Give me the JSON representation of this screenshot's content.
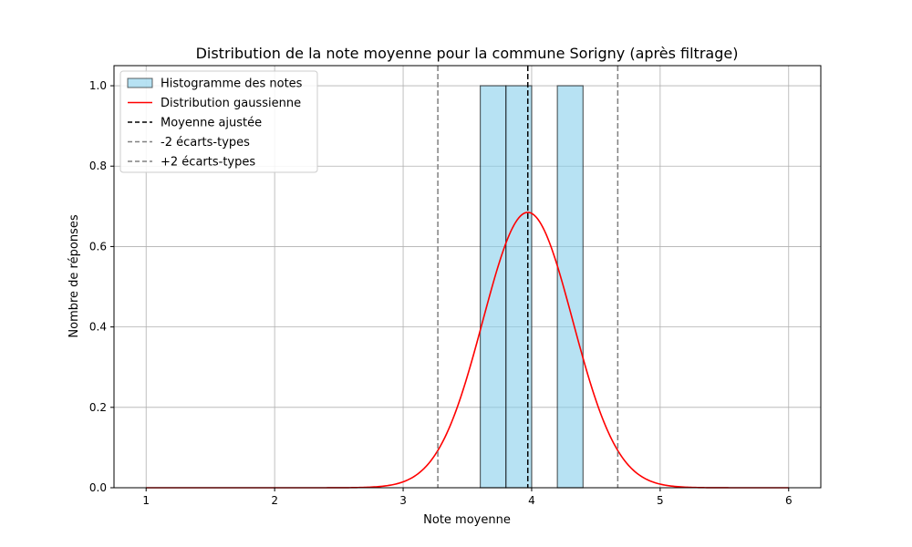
{
  "chart_data": {
    "type": "bar",
    "title": "Distribution de la note moyenne pour la commune Sorigny (après filtrage)",
    "xlabel": "Note moyenne",
    "ylabel": "Nombre de réponses",
    "xlim": [
      0.75,
      6.25
    ],
    "ylim": [
      0,
      1.05
    ],
    "xticks": [
      1,
      2,
      3,
      4,
      5,
      6
    ],
    "yticks": [
      0.0,
      0.2,
      0.4,
      0.6,
      0.8,
      1.0
    ],
    "xtick_labels": [
      "1",
      "2",
      "3",
      "4",
      "5",
      "6"
    ],
    "ytick_labels": [
      "0.0",
      "0.2",
      "0.4",
      "0.6",
      "0.8",
      "1.0"
    ],
    "grid": true,
    "legend_position": "top-left",
    "histogram": {
      "name": "Histogramme des notes",
      "color": "#87ceeb",
      "edge_color": "#000000",
      "bins": [
        {
          "start": 3.6,
          "end": 3.8,
          "value": 1
        },
        {
          "start": 3.8,
          "end": 4.0,
          "value": 1
        },
        {
          "start": 4.2,
          "end": 4.4,
          "value": 1
        }
      ]
    },
    "gaussian": {
      "name": "Distribution gaussienne",
      "color": "#ff0000",
      "mean": 3.97,
      "std": 0.35,
      "peak": 0.685,
      "x_range": [
        1,
        6
      ]
    },
    "vlines": [
      {
        "name": "Moyenne ajustée",
        "x": 3.97,
        "color": "#000000",
        "style": "dashed"
      },
      {
        "name": "-2 écarts-types",
        "x": 3.27,
        "color": "#808080",
        "style": "dashed"
      },
      {
        "name": "+2 écarts-types",
        "x": 4.67,
        "color": "#808080",
        "style": "dashed"
      }
    ]
  }
}
